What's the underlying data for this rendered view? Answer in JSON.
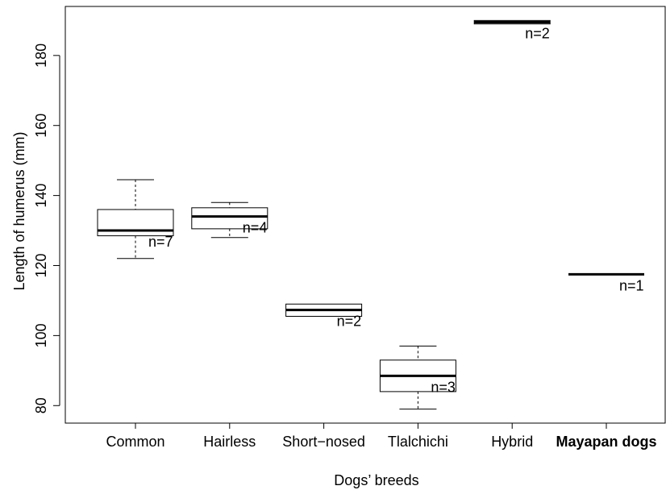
{
  "chart_data": {
    "type": "boxplot",
    "title": "",
    "xlabel": "Dogs’ breeds",
    "ylabel": "Length of humerus (mm)",
    "ylim": [
      75,
      194
    ],
    "yticks": [
      80,
      100,
      120,
      140,
      160,
      180
    ],
    "grid": false,
    "legend": "none",
    "categories": [
      "Common",
      "Hairless",
      "Short−nosed",
      "Tlalchichi",
      "Hybrid",
      "Mayapan dogs"
    ],
    "bold_category": "Mayapan dogs",
    "boxes": [
      {
        "category": "Common",
        "min": 122,
        "q1": 128.5,
        "median": 130,
        "q3": 136,
        "max": 144.5,
        "n_label": "n=7"
      },
      {
        "category": "Hairless",
        "min": 128,
        "q1": 130.5,
        "median": 134,
        "q3": 136.5,
        "max": 138,
        "n_label": "n=4"
      },
      {
        "category": "Short−nosed",
        "min": 105.5,
        "q1": 105.5,
        "median": 107.3,
        "q3": 109,
        "max": 109,
        "n_label": "n=2"
      },
      {
        "category": "Tlalchichi",
        "min": 79,
        "q1": 84,
        "median": 88.5,
        "q3": 93,
        "max": 97,
        "n_label": "n=3"
      },
      {
        "category": "Hybrid",
        "min": 189,
        "q1": 189,
        "median": 189.5,
        "q3": 190,
        "max": 190,
        "n_label": "n=2"
      },
      {
        "category": "Mayapan dogs",
        "min": 117.5,
        "q1": 117.5,
        "median": 117.5,
        "q3": 117.5,
        "max": 117.5,
        "n_label": "n=1"
      }
    ]
  }
}
